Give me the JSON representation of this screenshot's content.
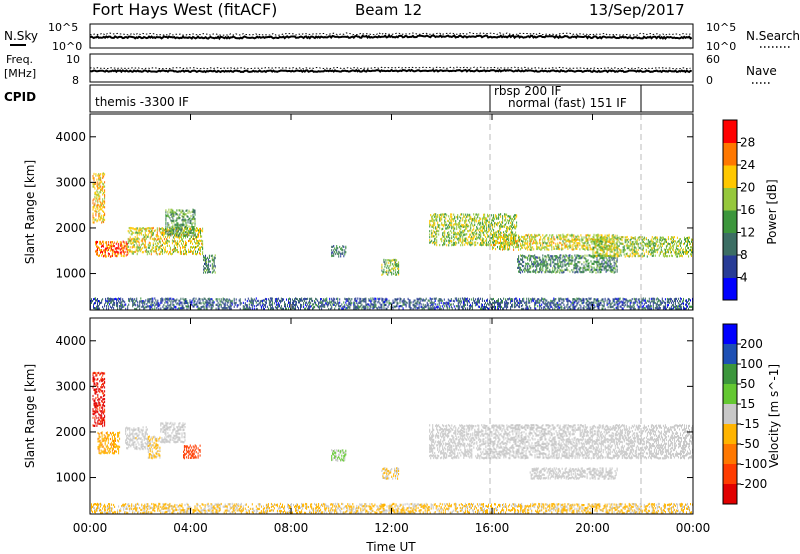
{
  "header": {
    "title": "Fort Hays West (fitACF)",
    "beam": "Beam 12",
    "date": "13/Sep/2017"
  },
  "noise_panel": {
    "left_label": "N.Sky",
    "right_label": "N.Search",
    "left_ticks": [
      "10^5",
      "10^0"
    ],
    "right_ticks": [
      "10^5",
      "10^0"
    ]
  },
  "freq_panel": {
    "left_label_1": "Freq.",
    "left_label_2": "[MHz]",
    "right_label": "Nave",
    "left_ticks": [
      "10",
      "8"
    ],
    "right_ticks": [
      "60",
      "0"
    ]
  },
  "cpid_panel": {
    "label": "CPID",
    "modes": [
      {
        "text": "themis -3300 IF"
      },
      {
        "text": "rbsp 200 IF"
      },
      {
        "text": "normal (fast) 151 IF"
      }
    ]
  },
  "chart_data": [
    {
      "type": "heatmap",
      "name": "power",
      "ylabel": "Slant Range [km]",
      "colorbar_label": "Power [dB]",
      "y_ticks": [
        "1000",
        "2000",
        "3000",
        "4000"
      ],
      "ylim": [
        200,
        4500
      ],
      "colorbar_ticks": [
        "28",
        "24",
        "20",
        "16",
        "12",
        "8",
        "4"
      ],
      "colors": [
        "#0000ff",
        "#283c96",
        "#3c6e64",
        "#3c963c",
        "#96c83c",
        "#ffc800",
        "#ff7800",
        "#ff0000"
      ],
      "blobs": [
        {
          "t0": 0.1,
          "t1": 0.6,
          "r0": 2100,
          "r1": 3200,
          "power": 22
        },
        {
          "t0": 0.2,
          "t1": 1.5,
          "r0": 1350,
          "r1": 1700,
          "power": 26
        },
        {
          "t0": 1.5,
          "t1": 4.5,
          "r0": 1400,
          "r1": 2000,
          "power": 20
        },
        {
          "t0": 3.0,
          "t1": 4.2,
          "r0": 1800,
          "r1": 2400,
          "power": 14
        },
        {
          "t0": 4.5,
          "t1": 5.0,
          "r0": 1000,
          "r1": 1400,
          "power": 12
        },
        {
          "t0": 9.6,
          "t1": 10.2,
          "r0": 1350,
          "r1": 1600,
          "power": 10
        },
        {
          "t0": 11.6,
          "t1": 12.3,
          "r0": 950,
          "r1": 1300,
          "power": 16
        },
        {
          "t0": 13.5,
          "t1": 17.0,
          "r0": 1600,
          "r1": 2300,
          "power": 18
        },
        {
          "t0": 16.0,
          "t1": 21.0,
          "r0": 1500,
          "r1": 1850,
          "power": 20
        },
        {
          "t0": 17.0,
          "t1": 21.0,
          "r0": 1000,
          "r1": 1400,
          "power": 12
        },
        {
          "t0": 20.0,
          "t1": 24.0,
          "r0": 1350,
          "r1": 1800,
          "power": 18
        },
        {
          "t0": 0.0,
          "t1": 24.0,
          "r0": 200,
          "r1": 450,
          "power": 8
        }
      ]
    },
    {
      "type": "heatmap",
      "name": "velocity",
      "ylabel": "Slant Range [km]",
      "colorbar_label": "Velocity [m s^-1]",
      "y_ticks": [
        "1000",
        "2000",
        "3000",
        "4000"
      ],
      "ylim": [
        200,
        4500
      ],
      "colorbar_ticks": [
        "200",
        "100",
        "50",
        "15",
        "-15",
        "-50",
        "-100",
        "-200"
      ],
      "colors": [
        "#0000ff",
        "#1e50b4",
        "#3c963c",
        "#64c832",
        "#c8c8c8",
        "#ffb400",
        "#ff7800",
        "#ff3c00",
        "#e10000"
      ],
      "blobs": [
        {
          "t0": 0.1,
          "t1": 0.6,
          "r0": 2100,
          "r1": 3300,
          "velocity": -250
        },
        {
          "t0": 0.3,
          "t1": 1.2,
          "r0": 1500,
          "r1": 2000,
          "velocity": -80
        },
        {
          "t0": 1.4,
          "t1": 2.3,
          "r0": 1600,
          "r1": 2100,
          "velocity": -5
        },
        {
          "t0": 2.3,
          "t1": 2.8,
          "r0": 1400,
          "r1": 1900,
          "velocity": -40
        },
        {
          "t0": 2.8,
          "t1": 3.8,
          "r0": 1750,
          "r1": 2200,
          "velocity": 0
        },
        {
          "t0": 3.7,
          "t1": 4.4,
          "r0": 1400,
          "r1": 1700,
          "velocity": -200
        },
        {
          "t0": 9.6,
          "t1": 10.2,
          "r0": 1350,
          "r1": 1600,
          "velocity": 40
        },
        {
          "t0": 11.6,
          "t1": 12.3,
          "r0": 950,
          "r1": 1200,
          "velocity": -30
        },
        {
          "t0": 13.5,
          "t1": 24.0,
          "r0": 1400,
          "r1": 2150,
          "velocity": 0
        },
        {
          "t0": 17.5,
          "t1": 21.0,
          "r0": 950,
          "r1": 1200,
          "velocity": 0
        },
        {
          "t0": 0.0,
          "t1": 24.0,
          "r0": 200,
          "r1": 420,
          "velocity": -40
        }
      ]
    }
  ],
  "x_axis": {
    "label": "Time UT",
    "ticks": [
      "00:00",
      "04:00",
      "08:00",
      "12:00",
      "16:00",
      "20:00",
      "00:00"
    ],
    "xlim_hours": [
      0,
      24
    ]
  }
}
